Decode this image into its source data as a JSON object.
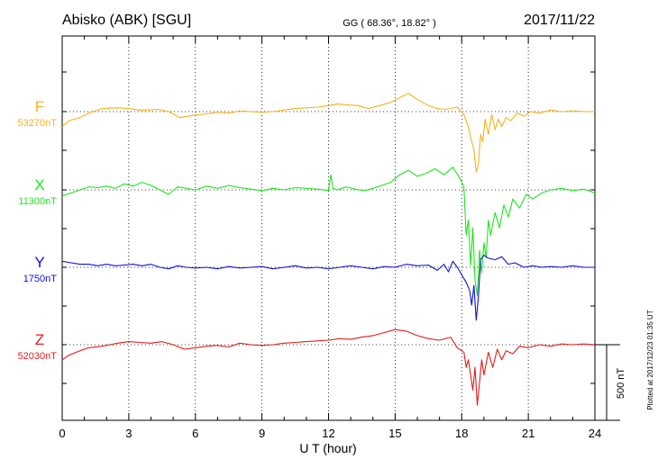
{
  "header": {
    "station": "Abisko (ABK)  [SGU]",
    "coords": "GG ( 68.36°,  18.82° )",
    "date": "2017/11/22"
  },
  "plot_note": "Plotted at 2017/12/23 01:35 UT",
  "scale_bar_label": "500 nT",
  "chart_data": {
    "type": "line",
    "xlabel": "U T (hour)",
    "xlim": [
      0,
      24
    ],
    "xticks": [
      0,
      3,
      6,
      9,
      12,
      15,
      18,
      21,
      24
    ],
    "xtick_labels": [
      "0",
      "3",
      "6",
      "9",
      "12",
      "15",
      "18",
      "21",
      "24"
    ],
    "units": "nT",
    "scale_bar_nT": 500,
    "grid": true,
    "series": [
      {
        "name": "F",
        "baseline_label": "53270nT",
        "baseline": 53270,
        "color": "#f5b21d",
        "x": [
          0,
          0.3,
          0.8,
          1.2,
          1.8,
          2.5,
          3.0,
          3.5,
          3.9,
          4.3,
          4.8,
          5.3,
          5.9,
          6.5,
          7.0,
          7.5,
          8.0,
          8.5,
          9.0,
          9.5,
          10.0,
          10.5,
          11.0,
          11.5,
          12.0,
          12.4,
          12.8,
          13.3,
          13.8,
          14.3,
          14.8,
          15.3,
          15.6,
          16.0,
          16.5,
          16.9,
          17.3,
          17.8,
          18.1,
          18.3,
          18.45,
          18.55,
          18.65,
          18.75,
          18.85,
          18.95,
          19.05,
          19.2,
          19.35,
          19.5,
          19.65,
          19.8,
          20.0,
          20.2,
          20.5,
          20.8,
          21.1,
          21.5,
          22.0,
          22.5,
          23.0,
          23.5,
          24.0
        ],
        "y": [
          -100,
          -60,
          -40,
          -10,
          20,
          25,
          20,
          10,
          10,
          15,
          0,
          -40,
          -25,
          -15,
          -5,
          -10,
          5,
          0,
          -5,
          0,
          10,
          20,
          25,
          30,
          40,
          50,
          45,
          40,
          20,
          40,
          60,
          100,
          120,
          80,
          40,
          20,
          15,
          30,
          -20,
          -100,
          -200,
          -250,
          -400,
          -350,
          -150,
          -200,
          -50,
          -150,
          -20,
          -120,
          -50,
          -100,
          -40,
          -60,
          -10,
          -30,
          0,
          -10,
          10,
          0,
          5,
          0,
          0
        ]
      },
      {
        "name": "X",
        "baseline_label": "11300nT",
        "baseline": 11300,
        "color": "#1de61d",
        "x": [
          0,
          0.4,
          0.8,
          1.2,
          1.6,
          2.0,
          2.4,
          2.8,
          3.2,
          3.6,
          4.0,
          4.4,
          4.8,
          5.2,
          5.6,
          6.0,
          6.5,
          7.0,
          7.5,
          8.0,
          8.5,
          9.0,
          9.5,
          10.0,
          10.5,
          11.0,
          11.5,
          12.0,
          12.1,
          12.2,
          12.4,
          12.8,
          13.2,
          13.6,
          14.0,
          14.4,
          14.8,
          15.2,
          15.6,
          16.0,
          16.4,
          16.8,
          17.2,
          17.6,
          17.9,
          18.1,
          18.2,
          18.3,
          18.4,
          18.5,
          18.6,
          18.7,
          18.8,
          18.9,
          19.0,
          19.1,
          19.2,
          19.3,
          19.5,
          19.7,
          19.9,
          20.1,
          20.3,
          20.6,
          20.9,
          21.2,
          21.6,
          22.0,
          22.5,
          23.0,
          23.5,
          24.0
        ],
        "y": [
          -40,
          -20,
          0,
          20,
          15,
          25,
          10,
          40,
          25,
          50,
          30,
          0,
          -30,
          20,
          10,
          0,
          25,
          10,
          30,
          15,
          5,
          -5,
          10,
          0,
          15,
          10,
          5,
          -5,
          100,
          10,
          0,
          20,
          5,
          -5,
          10,
          30,
          50,
          100,
          130,
          90,
          110,
          140,
          100,
          150,
          80,
          20,
          -300,
          -200,
          -500,
          -250,
          -600,
          -700,
          -400,
          -550,
          -350,
          -450,
          -200,
          -300,
          -150,
          -250,
          -100,
          -180,
          -60,
          -120,
          -30,
          -60,
          -20,
          0,
          10,
          -5,
          5,
          -20
        ]
      },
      {
        "name": "Y",
        "baseline_label": "1750nT",
        "baseline": 1750,
        "color": "#1111d6",
        "x": [
          0,
          0.4,
          0.8,
          1.2,
          1.6,
          2.0,
          2.4,
          2.8,
          3.2,
          3.6,
          4.0,
          4.4,
          4.8,
          5.2,
          5.6,
          6.0,
          6.5,
          7.0,
          7.5,
          8.0,
          8.5,
          9.0,
          9.5,
          10.0,
          10.5,
          11.0,
          11.5,
          12.0,
          12.5,
          13.0,
          13.5,
          14.0,
          14.5,
          15.0,
          15.5,
          16.0,
          16.5,
          16.9,
          17.2,
          17.4,
          17.6,
          17.8,
          18.0,
          18.2,
          18.35,
          18.45,
          18.55,
          18.65,
          18.75,
          18.85,
          19.0,
          19.2,
          19.5,
          19.8,
          20.1,
          20.4,
          20.8,
          21.2,
          21.6,
          22.0,
          22.5,
          23.0,
          23.5,
          24.0
        ],
        "y": [
          40,
          30,
          20,
          20,
          10,
          20,
          10,
          15,
          20,
          10,
          20,
          0,
          -10,
          10,
          0,
          -5,
          0,
          -10,
          5,
          -5,
          0,
          5,
          -10,
          0,
          10,
          -5,
          0,
          -10,
          0,
          10,
          0,
          -10,
          5,
          0,
          20,
          10,
          15,
          -20,
          20,
          -30,
          40,
          0,
          -50,
          -100,
          -150,
          -250,
          -120,
          -350,
          -200,
          50,
          80,
          60,
          50,
          70,
          20,
          30,
          0,
          10,
          0,
          5,
          0,
          10,
          0,
          0
        ]
      },
      {
        "name": "Z",
        "baseline_label": "52030nT",
        "baseline": 52030,
        "color": "#e51b1b",
        "x": [
          0,
          0.3,
          0.8,
          1.2,
          1.8,
          2.5,
          3.0,
          3.5,
          4.0,
          4.5,
          5.0,
          5.5,
          6.0,
          6.5,
          7.0,
          7.5,
          8.0,
          8.5,
          9.0,
          9.5,
          10.0,
          10.5,
          11.0,
          11.5,
          12.0,
          12.5,
          13.0,
          13.5,
          14.0,
          14.5,
          15.0,
          15.5,
          16.0,
          16.5,
          17.0,
          17.5,
          17.8,
          18.1,
          18.2,
          18.3,
          18.4,
          18.5,
          18.6,
          18.7,
          18.8,
          18.9,
          19.0,
          19.2,
          19.4,
          19.6,
          19.8,
          20.0,
          20.3,
          20.6,
          21.0,
          21.5,
          22.0,
          22.5,
          23.0,
          23.5,
          24.0
        ],
        "y": [
          -100,
          -70,
          -40,
          -20,
          -10,
          10,
          20,
          15,
          10,
          20,
          0,
          -30,
          -20,
          -10,
          -5,
          -15,
          10,
          0,
          -5,
          0,
          10,
          15,
          20,
          25,
          30,
          40,
          35,
          50,
          60,
          80,
          100,
          90,
          60,
          40,
          30,
          50,
          -20,
          -50,
          -150,
          -100,
          -200,
          -300,
          -150,
          -400,
          -250,
          -100,
          -200,
          -50,
          -150,
          -30,
          -100,
          -40,
          -60,
          -10,
          -20,
          0,
          -10,
          5,
          0,
          5,
          0
        ]
      }
    ]
  }
}
